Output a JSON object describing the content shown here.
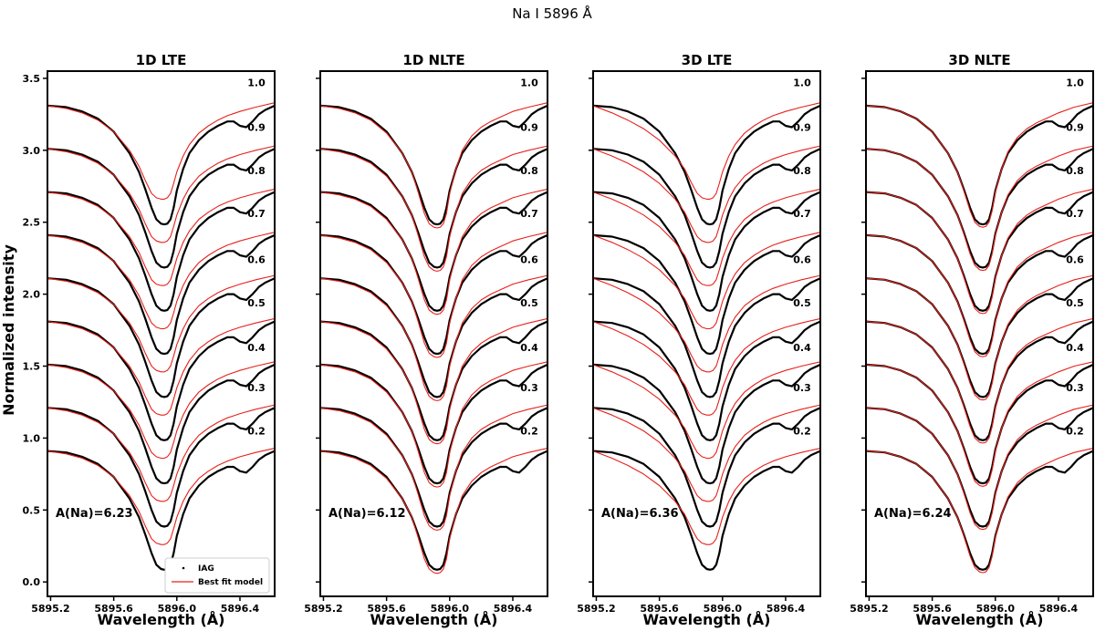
{
  "figure": {
    "title": "Na I 5896 Å",
    "ylabel": "Normalized intensity",
    "xlabel": "Wavelength (Å)"
  },
  "legend": {
    "observed": "IAG",
    "model": "Best fit model"
  },
  "colors": {
    "observed": "#000000",
    "model": "#e8201a"
  },
  "chart_data": [
    {
      "type": "line",
      "title": "1D LTE",
      "abundance_label": "A(Na)=6.23",
      "xlim": [
        5895.18,
        5896.62
      ],
      "ylim": [
        -0.1,
        3.55
      ],
      "xticks": [
        5895.2,
        5895.6,
        5896.0,
        5896.4
      ],
      "xtick_labels": [
        "5895.2",
        "5895.6",
        "5896.0",
        "5896.4"
      ],
      "yticks": [
        0.0,
        0.5,
        1.0,
        1.5,
        2.0,
        2.5,
        3.0,
        3.5
      ],
      "ytick_labels": [
        "0.0",
        "0.5",
        "1.0",
        "1.5",
        "2.0",
        "2.5",
        "3.0",
        "3.5"
      ],
      "mu_labels": [
        "0.2",
        "0.3",
        "0.4",
        "0.5",
        "0.6",
        "0.7",
        "0.8",
        "0.9",
        "1.0"
      ],
      "mu_label_y": [
        1.05,
        1.35,
        1.63,
        1.94,
        2.24,
        2.56,
        2.86,
        3.16,
        3.47
      ],
      "curve_offsets": [
        0.0,
        0.3,
        0.6,
        0.9,
        1.2,
        1.5,
        1.8,
        2.1,
        2.4
      ],
      "observed": {
        "x": [
          5895.18,
          5895.3,
          5895.4,
          5895.5,
          5895.6,
          5895.7,
          5895.76,
          5895.8,
          5895.84,
          5895.87,
          5895.9,
          5895.92,
          5895.94,
          5895.96,
          5895.98,
          5896.0,
          5896.04,
          5896.08,
          5896.14,
          5896.2,
          5896.26,
          5896.32,
          5896.36,
          5896.4,
          5896.44,
          5896.48,
          5896.52,
          5896.56,
          5896.62
        ],
        "y": [
          0.91,
          0.9,
          0.87,
          0.82,
          0.73,
          0.58,
          0.45,
          0.33,
          0.2,
          0.12,
          0.09,
          0.085,
          0.09,
          0.12,
          0.2,
          0.32,
          0.47,
          0.58,
          0.67,
          0.73,
          0.77,
          0.8,
          0.8,
          0.77,
          0.76,
          0.8,
          0.85,
          0.88,
          0.91
        ]
      },
      "model": {
        "x": [
          5895.18,
          5895.3,
          5895.4,
          5895.5,
          5895.6,
          5895.7,
          5895.76,
          5895.8,
          5895.84,
          5895.87,
          5895.9,
          5895.92,
          5895.94,
          5895.96,
          5895.98,
          5896.0,
          5896.04,
          5896.08,
          5896.14,
          5896.2,
          5896.26,
          5896.32,
          5896.4,
          5896.5,
          5896.62
        ],
        "y": [
          0.91,
          0.89,
          0.86,
          0.81,
          0.73,
          0.6,
          0.49,
          0.39,
          0.3,
          0.27,
          0.26,
          0.26,
          0.27,
          0.3,
          0.37,
          0.45,
          0.56,
          0.64,
          0.72,
          0.77,
          0.81,
          0.84,
          0.87,
          0.9,
          0.93
        ]
      }
    },
    {
      "type": "line",
      "title": "1D NLTE",
      "abundance_label": "A(Na)=6.12",
      "xlim": [
        5895.18,
        5896.62
      ],
      "ylim": [
        -0.1,
        3.55
      ],
      "xticks": [
        5895.2,
        5895.6,
        5896.0,
        5896.4
      ],
      "xtick_labels": [
        "5895.2",
        "5895.6",
        "5896.0",
        "5896.4"
      ],
      "mu_labels": [
        "0.2",
        "0.3",
        "0.4",
        "0.5",
        "0.6",
        "0.7",
        "0.8",
        "0.9",
        "1.0"
      ],
      "mu_label_y": [
        1.05,
        1.35,
        1.63,
        1.94,
        2.24,
        2.56,
        2.86,
        3.16,
        3.47
      ],
      "curve_offsets": [
        0.0,
        0.3,
        0.6,
        0.9,
        1.2,
        1.5,
        1.8,
        2.1,
        2.4
      ],
      "observed": {
        "x": [
          5895.18,
          5895.3,
          5895.4,
          5895.5,
          5895.6,
          5895.7,
          5895.76,
          5895.8,
          5895.84,
          5895.87,
          5895.9,
          5895.92,
          5895.94,
          5895.96,
          5895.98,
          5896.0,
          5896.04,
          5896.08,
          5896.14,
          5896.2,
          5896.26,
          5896.32,
          5896.36,
          5896.4,
          5896.44,
          5896.48,
          5896.52,
          5896.56,
          5896.62
        ],
        "y": [
          0.91,
          0.9,
          0.87,
          0.82,
          0.73,
          0.58,
          0.45,
          0.33,
          0.2,
          0.12,
          0.09,
          0.085,
          0.09,
          0.12,
          0.2,
          0.32,
          0.47,
          0.58,
          0.67,
          0.73,
          0.77,
          0.8,
          0.8,
          0.77,
          0.76,
          0.8,
          0.85,
          0.88,
          0.91
        ]
      },
      "model": {
        "x": [
          5895.18,
          5895.3,
          5895.4,
          5895.5,
          5895.6,
          5895.7,
          5895.76,
          5895.8,
          5895.84,
          5895.87,
          5895.9,
          5895.92,
          5895.94,
          5895.96,
          5895.98,
          5896.0,
          5896.04,
          5896.08,
          5896.14,
          5896.2,
          5896.26,
          5896.32,
          5896.4,
          5896.5,
          5896.62
        ],
        "y": [
          0.91,
          0.89,
          0.86,
          0.81,
          0.72,
          0.58,
          0.45,
          0.31,
          0.16,
          0.09,
          0.065,
          0.06,
          0.065,
          0.09,
          0.16,
          0.3,
          0.47,
          0.6,
          0.7,
          0.76,
          0.8,
          0.83,
          0.87,
          0.9,
          0.93
        ]
      }
    },
    {
      "type": "line",
      "title": "3D LTE",
      "abundance_label": "A(Na)=6.36",
      "xlim": [
        5895.18,
        5896.62
      ],
      "ylim": [
        -0.1,
        3.55
      ],
      "xticks": [
        5895.2,
        5895.6,
        5896.0,
        5896.4
      ],
      "xtick_labels": [
        "5895.2",
        "5895.6",
        "5896.0",
        "5896.4"
      ],
      "mu_labels": [
        "0.2",
        "0.3",
        "0.4",
        "0.5",
        "0.6",
        "0.7",
        "0.8",
        "0.9",
        "1.0"
      ],
      "mu_label_y": [
        1.05,
        1.35,
        1.63,
        1.94,
        2.24,
        2.56,
        2.86,
        3.16,
        3.47
      ],
      "curve_offsets": [
        0.0,
        0.3,
        0.6,
        0.9,
        1.2,
        1.5,
        1.8,
        2.1,
        2.4
      ],
      "observed": {
        "x": [
          5895.18,
          5895.3,
          5895.4,
          5895.5,
          5895.6,
          5895.7,
          5895.76,
          5895.8,
          5895.84,
          5895.87,
          5895.9,
          5895.92,
          5895.94,
          5895.96,
          5895.98,
          5896.0,
          5896.04,
          5896.08,
          5896.14,
          5896.2,
          5896.26,
          5896.32,
          5896.36,
          5896.4,
          5896.44,
          5896.48,
          5896.52,
          5896.56,
          5896.62
        ],
        "y": [
          0.91,
          0.9,
          0.87,
          0.82,
          0.73,
          0.58,
          0.45,
          0.33,
          0.2,
          0.12,
          0.09,
          0.085,
          0.09,
          0.12,
          0.2,
          0.32,
          0.47,
          0.58,
          0.67,
          0.73,
          0.77,
          0.8,
          0.8,
          0.77,
          0.76,
          0.8,
          0.85,
          0.88,
          0.91
        ]
      },
      "model": {
        "x": [
          5895.18,
          5895.3,
          5895.4,
          5895.5,
          5895.6,
          5895.7,
          5895.76,
          5895.8,
          5895.84,
          5895.87,
          5895.9,
          5895.92,
          5895.94,
          5895.96,
          5895.98,
          5896.0,
          5896.04,
          5896.08,
          5896.14,
          5896.2,
          5896.26,
          5896.32,
          5896.4,
          5896.5,
          5896.62
        ],
        "y": [
          0.91,
          0.86,
          0.81,
          0.75,
          0.67,
          0.56,
          0.47,
          0.38,
          0.3,
          0.27,
          0.26,
          0.26,
          0.27,
          0.3,
          0.37,
          0.45,
          0.56,
          0.64,
          0.72,
          0.77,
          0.81,
          0.84,
          0.87,
          0.9,
          0.93
        ]
      }
    },
    {
      "type": "line",
      "title": "3D NLTE",
      "abundance_label": "A(Na)=6.24",
      "xlim": [
        5895.18,
        5896.62
      ],
      "ylim": [
        -0.1,
        3.55
      ],
      "xticks": [
        5895.2,
        5895.6,
        5896.0,
        5896.4
      ],
      "xtick_labels": [
        "5895.2",
        "5895.6",
        "5896.0",
        "5896.4"
      ],
      "mu_labels": [
        "0.2",
        "0.3",
        "0.4",
        "0.5",
        "0.6",
        "0.7",
        "0.8",
        "0.9",
        "1.0"
      ],
      "mu_label_y": [
        1.05,
        1.35,
        1.63,
        1.94,
        2.24,
        2.56,
        2.86,
        3.16,
        3.47
      ],
      "curve_offsets": [
        0.0,
        0.3,
        0.6,
        0.9,
        1.2,
        1.5,
        1.8,
        2.1,
        2.4
      ],
      "observed": {
        "x": [
          5895.18,
          5895.3,
          5895.4,
          5895.5,
          5895.6,
          5895.7,
          5895.76,
          5895.8,
          5895.84,
          5895.87,
          5895.9,
          5895.92,
          5895.94,
          5895.96,
          5895.98,
          5896.0,
          5896.04,
          5896.08,
          5896.14,
          5896.2,
          5896.26,
          5896.32,
          5896.36,
          5896.4,
          5896.44,
          5896.48,
          5896.52,
          5896.56,
          5896.62
        ],
        "y": [
          0.91,
          0.9,
          0.87,
          0.82,
          0.73,
          0.58,
          0.45,
          0.33,
          0.2,
          0.12,
          0.09,
          0.085,
          0.09,
          0.12,
          0.2,
          0.32,
          0.47,
          0.58,
          0.67,
          0.73,
          0.77,
          0.8,
          0.8,
          0.77,
          0.76,
          0.8,
          0.85,
          0.88,
          0.91
        ]
      },
      "model": {
        "x": [
          5895.18,
          5895.3,
          5895.4,
          5895.5,
          5895.6,
          5895.7,
          5895.76,
          5895.8,
          5895.84,
          5895.87,
          5895.9,
          5895.92,
          5895.94,
          5895.96,
          5895.98,
          5896.0,
          5896.04,
          5896.08,
          5896.14,
          5896.2,
          5896.26,
          5896.32,
          5896.4,
          5896.5,
          5896.62
        ],
        "y": [
          0.91,
          0.9,
          0.87,
          0.82,
          0.73,
          0.58,
          0.45,
          0.32,
          0.18,
          0.1,
          0.07,
          0.065,
          0.07,
          0.1,
          0.18,
          0.31,
          0.47,
          0.59,
          0.69,
          0.75,
          0.79,
          0.82,
          0.86,
          0.9,
          0.93
        ]
      }
    }
  ]
}
